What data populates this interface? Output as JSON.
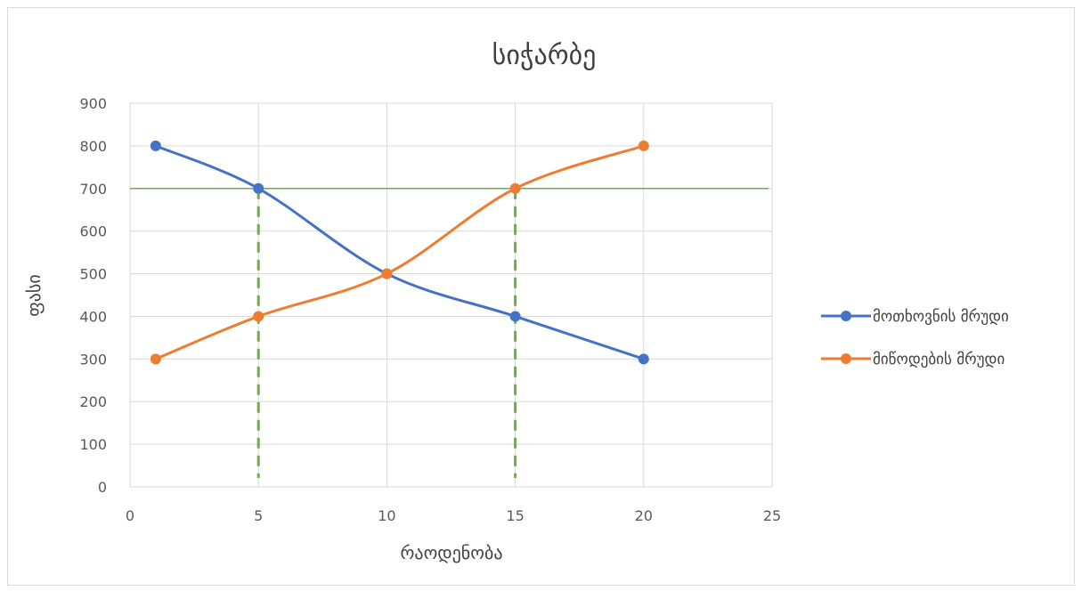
{
  "chart_data": {
    "type": "scatter",
    "title": "სიჭარბე",
    "xlabel": "რაოდენობა",
    "ylabel": "ფასი",
    "xlim": [
      0,
      25
    ],
    "ylim": [
      0,
      900
    ],
    "x_ticks": [
      "0",
      "5",
      "10",
      "15",
      "20",
      "25"
    ],
    "y_ticks": [
      "0",
      "100",
      "200",
      "300",
      "400",
      "500",
      "600",
      "700",
      "800",
      "900"
    ],
    "grid": true,
    "legend_position": "right",
    "series": [
      {
        "name": "მოთხოვნის მრუდი",
        "color": "#4472c4",
        "points": [
          [
            1,
            800
          ],
          [
            5,
            700
          ],
          [
            10,
            500
          ],
          [
            15,
            400
          ],
          [
            20,
            300
          ]
        ]
      },
      {
        "name": "მიწოდების მრუდი",
        "color": "#ed7d31",
        "points": [
          [
            1,
            300
          ],
          [
            5,
            400
          ],
          [
            10,
            500
          ],
          [
            15,
            700
          ],
          [
            20,
            800
          ]
        ]
      }
    ],
    "reference_lines": [
      {
        "orientation": "horizontal",
        "y": 700,
        "style": "solid",
        "color": "#70ad47"
      },
      {
        "orientation": "vertical",
        "x": 5,
        "y_range": [
          0,
          700
        ],
        "style": "dashed",
        "color": "#70ad47"
      },
      {
        "orientation": "vertical",
        "x": 15,
        "y_range": [
          0,
          700
        ],
        "style": "dashed",
        "color": "#70ad47"
      }
    ]
  }
}
